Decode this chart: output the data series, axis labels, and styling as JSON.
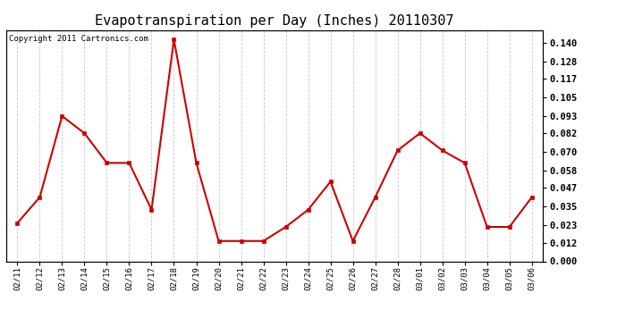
{
  "title": "Evapotranspiration per Day (Inches) 20110307",
  "copyright_text": "Copyright 2011 Cartronics.com",
  "dates": [
    "02/11",
    "02/12",
    "02/13",
    "02/14",
    "02/15",
    "02/16",
    "02/17",
    "02/18",
    "02/19",
    "02/20",
    "02/21",
    "02/22",
    "02/23",
    "02/24",
    "02/25",
    "02/26",
    "02/27",
    "02/28",
    "03/01",
    "03/02",
    "03/03",
    "03/04",
    "03/05",
    "03/06"
  ],
  "values": [
    0.0245,
    0.041,
    0.093,
    0.082,
    0.063,
    0.063,
    0.033,
    0.142,
    0.063,
    0.013,
    0.013,
    0.013,
    0.022,
    0.033,
    0.051,
    0.013,
    0.041,
    0.071,
    0.082,
    0.071,
    0.063,
    0.022,
    0.022,
    0.041
  ],
  "line_color": "#cc0000",
  "marker_color": "#cc0000",
  "bg_color": "#ffffff",
  "plot_bg_color": "#ffffff",
  "grid_color": "#c8c8c8",
  "yticks": [
    0.0,
    0.012,
    0.023,
    0.035,
    0.047,
    0.058,
    0.07,
    0.082,
    0.093,
    0.105,
    0.117,
    0.128,
    0.14
  ],
  "ylim": [
    0.0,
    0.148
  ],
  "title_fontsize": 11,
  "copyright_fontsize": 6.5,
  "tick_fontsize": 6.5,
  "ytick_fontsize": 7.5
}
